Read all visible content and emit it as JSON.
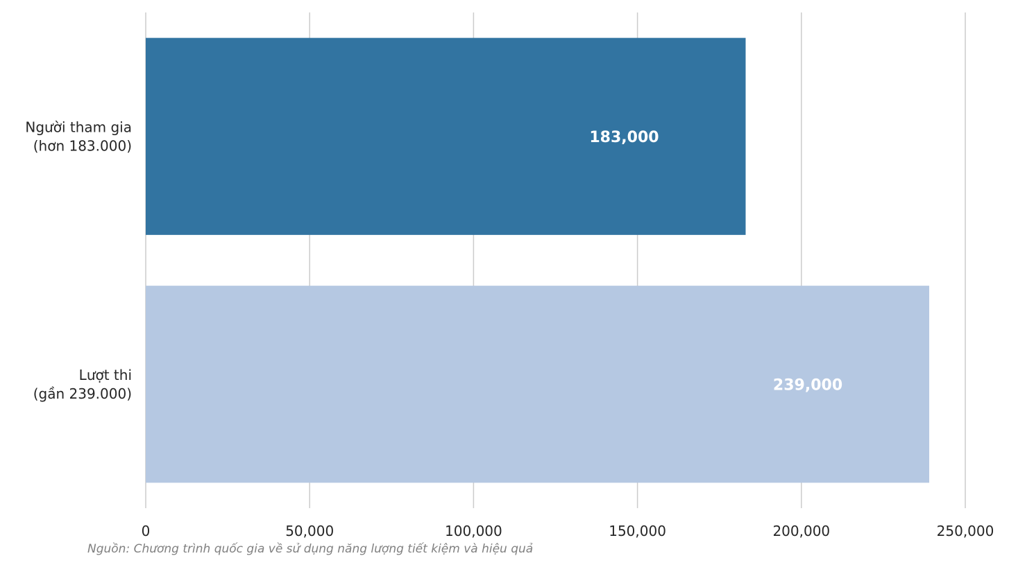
{
  "chart_data": {
    "type": "bar",
    "orientation": "horizontal",
    "categories": [
      [
        "Người tham gia",
        "(hơn 183.000)"
      ],
      [
        "Lượt thi",
        "(gần 239.000)"
      ]
    ],
    "values": [
      183000,
      239000
    ],
    "data_labels": [
      "183,000",
      "239,000"
    ],
    "bar_colors": [
      "#3274a1",
      "#b5c8e2"
    ],
    "xlim": [
      0,
      250000
    ],
    "x_ticks": [
      0,
      50000,
      100000,
      150000,
      200000,
      250000
    ],
    "x_tick_labels": [
      "0",
      "50,000",
      "100,000",
      "150,000",
      "200,000",
      "250,000"
    ],
    "grid": "vertical",
    "title": "",
    "xlabel": "",
    "ylabel": "",
    "source_note": "Nguồn: Chương trình quốc gia về sử dụng năng lượng tiết kiệm và hiệu quả"
  }
}
